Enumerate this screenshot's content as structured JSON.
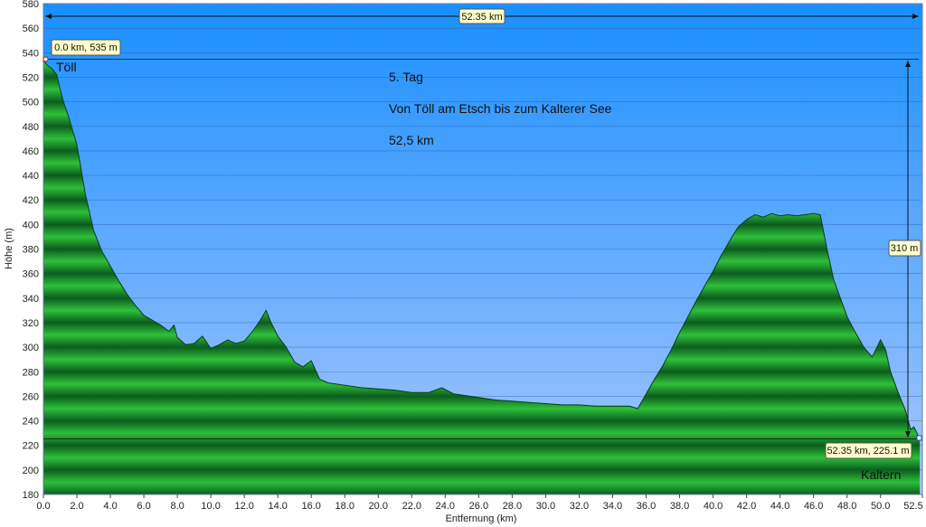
{
  "chart_data": {
    "type": "area",
    "xlabel": "Entfernung   (km)",
    "ylabel": "Höhe (m)",
    "xlim": [
      0,
      52.5
    ],
    "ylim": [
      180,
      580
    ],
    "x_ticks": [
      "0.0",
      "2.0",
      "4.0",
      "6.0",
      "8.0",
      "10.0",
      "12.0",
      "14.0",
      "16.0",
      "18.0",
      "20.0",
      "22.0",
      "24.0",
      "26.0",
      "28.0",
      "30.0",
      "32.0",
      "34.0",
      "36.0",
      "38.0",
      "40.0",
      "42.0",
      "44.0",
      "46.0",
      "48.0",
      "50.0",
      "52.5"
    ],
    "y_ticks": [
      "180",
      "200",
      "220",
      "240",
      "260",
      "280",
      "300",
      "320",
      "340",
      "360",
      "380",
      "400",
      "420",
      "440",
      "460",
      "480",
      "500",
      "520",
      "540",
      "560",
      "580"
    ],
    "grid": true,
    "colors": {
      "sky_top": "#1a8fff",
      "sky_bottom": "#a9c8ff",
      "fill_dark": "#0b5d1e",
      "fill_light": "#2fbf3a",
      "line": "#0a3d12"
    },
    "annotations": [
      "5. Tag",
      "Von Töll am Etsch bis zum Kalterer See",
      "52,5 km"
    ],
    "places": {
      "start": "Töll",
      "end": "Kaltern"
    },
    "callouts": {
      "start_point": "0.0 km, 535 m",
      "end_point": "52.35 km, 225.1 m",
      "distance": "52.35 km",
      "climb": "310 m"
    },
    "series": [
      {
        "x": [
          0,
          0.2,
          0.5,
          0.8,
          1.0,
          1.2,
          1.5,
          2.0,
          2.5,
          3.0,
          3.5,
          4.0,
          4.5,
          5.0,
          5.5,
          6.0,
          6.5,
          7.0,
          7.5,
          7.8,
          8.0,
          8.5,
          9.0,
          9.5,
          10.0,
          10.5,
          11.0,
          11.5,
          12.0,
          12.5,
          13.0,
          13.3,
          13.6,
          14.0,
          14.5,
          15.0,
          15.5,
          16.0,
          16.5,
          17.0,
          18.0,
          19.0,
          20.0,
          21.0,
          22.0,
          23.0,
          23.8,
          24.5,
          25.0,
          26.0,
          27.0,
          28.0,
          29.0,
          30.0,
          31.0,
          32.0,
          33.0,
          34.0,
          35.0,
          35.5,
          36.0,
          36.5,
          37.0,
          37.5,
          38.0,
          38.5,
          39.0,
          39.5,
          40.0,
          40.5,
          41.0,
          41.5,
          42.0,
          42.5,
          43.0,
          43.5,
          44.0,
          44.5,
          45.0,
          45.5,
          46.0,
          46.4,
          46.8,
          47.2,
          47.6,
          48.0,
          48.5,
          49.0,
          49.5,
          50.0,
          50.3,
          50.6,
          51.0,
          51.5,
          51.8,
          52.0,
          52.35
        ],
        "y": [
          535,
          530,
          527,
          522,
          510,
          500,
          488,
          465,
          425,
          395,
          378,
          366,
          354,
          343,
          334,
          326,
          322,
          318,
          313,
          318,
          308,
          302,
          303,
          309,
          299,
          302,
          306,
          303,
          305,
          313,
          323,
          330,
          320,
          309,
          300,
          288,
          284,
          289,
          274,
          271,
          269,
          267,
          266,
          265,
          263,
          263,
          267,
          262,
          261,
          259,
          257,
          256,
          255,
          254,
          253,
          253,
          252,
          252,
          252,
          250,
          262,
          274,
          285,
          298,
          312,
          325,
          338,
          350,
          362,
          375,
          387,
          398,
          404,
          408,
          406,
          409,
          407,
          408,
          407,
          408,
          409,
          408,
          380,
          355,
          340,
          325,
          312,
          300,
          292,
          306,
          298,
          280,
          265,
          248,
          233,
          235,
          225.1
        ]
      }
    ]
  }
}
